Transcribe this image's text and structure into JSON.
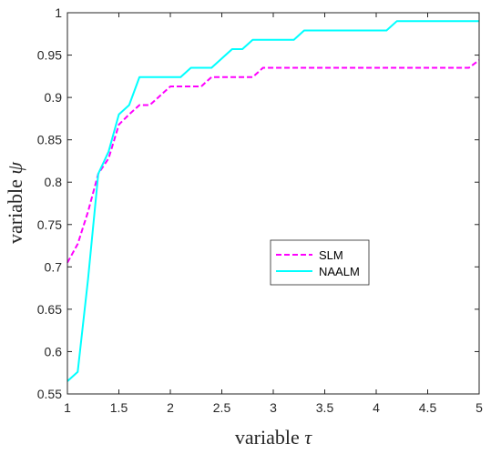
{
  "chart_data": {
    "type": "line",
    "xlabel_prefix": "variable",
    "xlabel_symbol": "τ",
    "ylabel_prefix": "variable",
    "ylabel_symbol": "ψ",
    "xlim": [
      1,
      5
    ],
    "ylim": [
      0.55,
      1
    ],
    "xticks": [
      1,
      1.5,
      2,
      2.5,
      3,
      3.5,
      4,
      4.5,
      5
    ],
    "xtick_labels": [
      "1",
      "1.5",
      "2",
      "2.5",
      "3",
      "3.5",
      "4",
      "4.5",
      "5"
    ],
    "yticks": [
      0.55,
      0.6,
      0.65,
      0.7,
      0.75,
      0.8,
      0.85,
      0.9,
      0.95,
      1
    ],
    "ytick_labels": [
      "0.55",
      "0.6",
      "0.65",
      "0.7",
      "0.75",
      "0.8",
      "0.85",
      "0.9",
      "0.95",
      "1"
    ],
    "grid": false,
    "legend_position": "center-right",
    "series": [
      {
        "name": "SLM",
        "color": "#ff00ff",
        "style": "dashed",
        "x": [
          1,
          1.1,
          1.2,
          1.3,
          1.4,
          1.5,
          1.6,
          1.7,
          1.8,
          1.9,
          2,
          2.1,
          2.2,
          2.3,
          2.4,
          2.5,
          2.6,
          2.7,
          2.8,
          2.9,
          3,
          3.5,
          4,
          4.5,
          4.9,
          5
        ],
        "y": [
          0.705,
          0.727,
          0.765,
          0.81,
          0.828,
          0.868,
          0.88,
          0.891,
          0.891,
          0.902,
          0.913,
          0.913,
          0.913,
          0.913,
          0.924,
          0.924,
          0.924,
          0.924,
          0.924,
          0.935,
          0.935,
          0.935,
          0.935,
          0.935,
          0.935,
          0.944
        ]
      },
      {
        "name": "NAALM",
        "color": "#00ffff",
        "style": "solid",
        "x": [
          1,
          1.1,
          1.2,
          1.3,
          1.4,
          1.5,
          1.6,
          1.7,
          1.8,
          1.9,
          2,
          2.1,
          2.2,
          2.3,
          2.4,
          2.5,
          2.6,
          2.7,
          2.8,
          2.9,
          3,
          3.1,
          3.2,
          3.3,
          3.4,
          3.5,
          4,
          4.1,
          4.2,
          4.3,
          4.5,
          5
        ],
        "y": [
          0.565,
          0.576,
          0.685,
          0.81,
          0.836,
          0.88,
          0.891,
          0.924,
          0.924,
          0.924,
          0.924,
          0.924,
          0.935,
          0.935,
          0.935,
          0.946,
          0.957,
          0.957,
          0.968,
          0.968,
          0.968,
          0.968,
          0.968,
          0.979,
          0.979,
          0.979,
          0.979,
          0.979,
          0.99,
          0.99,
          0.99,
          0.99
        ]
      }
    ]
  }
}
